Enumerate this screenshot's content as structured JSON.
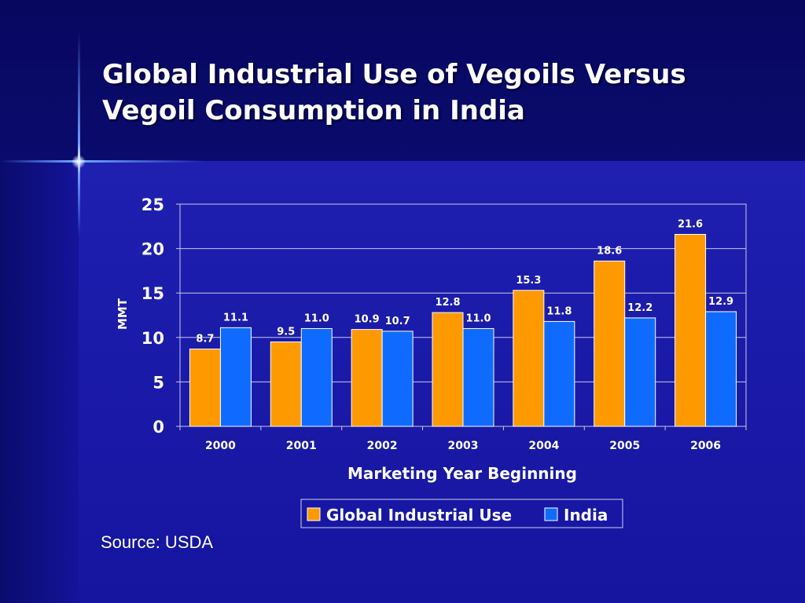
{
  "slide": {
    "title_line1": "Global Industrial Use of Vegoils Versus",
    "title_line2": "Vegoil Consumption in India",
    "source": "Source: USDA"
  },
  "colors": {
    "background": "#1a1a9e",
    "series_global": "#ff9900",
    "series_india": "#0f6bff"
  },
  "chart_data": {
    "type": "bar",
    "categories": [
      "2000",
      "2001",
      "2002",
      "2003",
      "2004",
      "2005",
      "2006"
    ],
    "series": [
      {
        "name": "Global Industrial Use",
        "values": [
          8.7,
          9.5,
          10.9,
          12.8,
          15.3,
          18.6,
          21.6
        ],
        "color": "#ff9900"
      },
      {
        "name": "India",
        "values": [
          11.1,
          11.0,
          10.7,
          11.0,
          11.8,
          12.2,
          12.9
        ],
        "color": "#0f6bff"
      }
    ],
    "xlabel": "Marketing Year Beginning",
    "ylabel": "MMT",
    "ylim": [
      0,
      25
    ],
    "yticks": [
      "0",
      "5",
      "10",
      "15",
      "20",
      "25"
    ],
    "grid": true,
    "legend": "bottom"
  }
}
